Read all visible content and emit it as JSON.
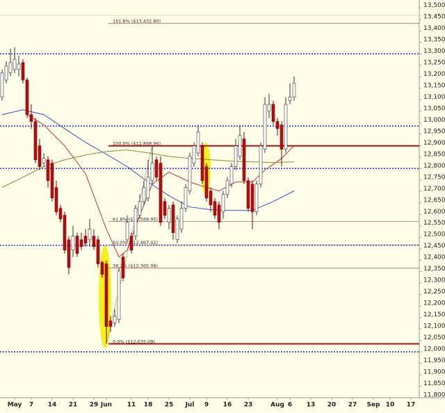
{
  "chart_data": {
    "type": "candlestick",
    "up_color": "#ffffff",
    "down_color": "#b01010",
    "xlim": [
      -0.5,
      100
    ],
    "xticks": [
      {
        "value": 3,
        "label": "May"
      },
      {
        "value": 7,
        "label": "7"
      },
      {
        "value": 12,
        "label": "14"
      },
      {
        "value": 17,
        "label": "21"
      },
      {
        "value": 22,
        "label": "29"
      },
      {
        "value": 25,
        "label": "Jun"
      },
      {
        "value": 31,
        "label": "11"
      },
      {
        "value": 35,
        "label": "18"
      },
      {
        "value": 40,
        "label": "25"
      },
      {
        "value": 45,
        "label": "Jul"
      },
      {
        "value": 49,
        "label": "9"
      },
      {
        "value": 54,
        "label": "16"
      },
      {
        "value": 59,
        "label": "23"
      },
      {
        "value": 66,
        "label": "Aug"
      },
      {
        "value": 69,
        "label": "6"
      },
      {
        "value": 74,
        "label": "13"
      },
      {
        "value": 79,
        "label": "20"
      },
      {
        "value": 84,
        "label": "27"
      },
      {
        "value": 89,
        "label": "Sep"
      },
      {
        "value": 93,
        "label": "10"
      },
      {
        "value": 98,
        "label": "17"
      }
    ],
    "ylim": [
      11800,
      13535
    ],
    "yticks": [
      {
        "value": 11800,
        "label": "11,800"
      },
      {
        "value": 11850,
        "label": "11,850"
      },
      {
        "value": 11900,
        "label": "11,900"
      },
      {
        "value": 11950,
        "label": "11,950"
      },
      {
        "value": 12000,
        "label": "12,000"
      },
      {
        "value": 12050,
        "label": "12,050"
      },
      {
        "value": 12100,
        "label": "12,100"
      },
      {
        "value": 12150,
        "label": "12,150"
      },
      {
        "value": 12200,
        "label": "12,200"
      },
      {
        "value": 12250,
        "label": "12,250"
      },
      {
        "value": 12300,
        "label": "12,300"
      },
      {
        "value": 12350,
        "label": "12,350"
      },
      {
        "value": 12400,
        "label": "12,400"
      },
      {
        "value": 12450,
        "label": "12,450"
      },
      {
        "value": 12500,
        "label": "12,500"
      },
      {
        "value": 12550,
        "label": "12,550"
      },
      {
        "value": 12600,
        "label": "12,600"
      },
      {
        "value": 12650,
        "label": "12,650"
      },
      {
        "value": 12700,
        "label": "12,700"
      },
      {
        "value": 12750,
        "label": "12,750"
      },
      {
        "value": 12800,
        "label": "12,800"
      },
      {
        "value": 12850,
        "label": "12,850"
      },
      {
        "value": 12900,
        "label": "12,900"
      },
      {
        "value": 12950,
        "label": "12,950"
      },
      {
        "value": 13000,
        "label": "13,000"
      },
      {
        "value": 13050,
        "label": "13,050"
      },
      {
        "value": 13100,
        "label": "13,100"
      },
      {
        "value": 13150,
        "label": "13,150"
      },
      {
        "value": 13200,
        "label": "13,200"
      },
      {
        "value": 13250,
        "label": "13,250"
      },
      {
        "value": 13300,
        "label": "13,300"
      },
      {
        "value": 13350,
        "label": "13,350"
      },
      {
        "value": 13400,
        "label": "13,400"
      },
      {
        "value": 13450,
        "label": "13,450"
      },
      {
        "value": 13500,
        "label": "13,500"
      }
    ],
    "open": [
      13111,
      13186,
      13217,
      13232,
      13232,
      13262,
      13186,
      13035,
      13005,
      12899,
      12823,
      12838,
      12823,
      12717,
      12626,
      12596,
      12489,
      12444,
      12505,
      12489,
      12505,
      12489,
      12505,
      12489,
      12390,
      12384,
      12135,
      12126,
      12141,
      12414,
      12489,
      12505,
      12505,
      12596,
      12656,
      12671,
      12747,
      12838,
      12823,
      12656,
      12565,
      12641,
      12490,
      12535,
      12626,
      12702,
      12823,
      12868,
      12899,
      12808,
      12702,
      12656,
      12641,
      12611,
      12687,
      12732,
      12808,
      12853,
      12929,
      12747,
      12732,
      12611,
      12732,
      12884,
      13050,
      13080,
      13005,
      12990,
      12884,
      13096,
      13111
    ],
    "high": [
      13232,
      13268,
      13323,
      13329,
      13293,
      13277,
      13196,
      13080,
      13020,
      12929,
      12868,
      12853,
      12838,
      12747,
      12641,
      12611,
      12505,
      12550,
      12520,
      12520,
      12535,
      12580,
      12535,
      12505,
      12398,
      12398,
      12156,
      12186,
      12368,
      12429,
      12596,
      12520,
      12641,
      12687,
      12747,
      12838,
      12899,
      12853,
      12853,
      12671,
      12641,
      12656,
      12596,
      12656,
      12732,
      12868,
      12914,
      12990,
      12914,
      12823,
      12717,
      12671,
      12656,
      12702,
      12762,
      12823,
      12929,
      12990,
      12959,
      12762,
      12747,
      12747,
      12914,
      13111,
      13126,
      13096,
      13020,
      13005,
      13111,
      13171,
      13202
    ],
    "low": [
      13096,
      13171,
      13202,
      13217,
      13202,
      13171,
      13020,
      12974,
      12823,
      12793,
      12808,
      12717,
      12656,
      12596,
      12565,
      12429,
      12338,
      12414,
      12414,
      12444,
      12459,
      12459,
      12444,
      12368,
      12323,
      12035,
      12087,
      12111,
      12126,
      12308,
      12474,
      12429,
      12489,
      12580,
      12641,
      12656,
      12732,
      12747,
      12550,
      12580,
      12535,
      12490,
      12474,
      12520,
      12611,
      12687,
      12808,
      12853,
      12732,
      12656,
      12611,
      12580,
      12535,
      12580,
      12671,
      12717,
      12793,
      12838,
      12732,
      12611,
      12535,
      12596,
      12717,
      12868,
      13020,
      12990,
      12944,
      12808,
      12868,
      13080,
      13096
    ],
    "close": [
      13217,
      13247,
      13262,
      13277,
      13256,
      13186,
      13035,
      13005,
      12838,
      12808,
      12844,
      12747,
      12671,
      12611,
      12580,
      12444,
      12368,
      12505,
      12429,
      12459,
      12474,
      12535,
      12459,
      12384,
      12338,
      12111,
      12111,
      12156,
      12353,
      12323,
      12565,
      12444,
      12626,
      12656,
      12717,
      12762,
      12823,
      12762,
      12565,
      12596,
      12626,
      12520,
      12580,
      12626,
      12717,
      12853,
      12899,
      12959,
      12747,
      12671,
      12641,
      12596,
      12565,
      12687,
      12747,
      12808,
      12899,
      12944,
      12747,
      12626,
      12611,
      12732,
      12899,
      13080,
      13080,
      13005,
      12974,
      12884,
      13080,
      13111,
      13171
    ],
    "moving_averages": [
      {
        "color": "#c83232",
        "x": [
          6,
          10,
          15,
          20,
          25,
          28,
          30,
          33,
          36,
          40,
          45,
          48,
          52,
          56,
          60,
          63,
          67,
          70
        ],
        "values": [
          13035,
          12990,
          12899,
          12778,
          12535,
          12414,
          12444,
          12596,
          12732,
          12784,
          12741,
          12723,
          12702,
          12741,
          12741,
          12793,
          12844,
          12899
        ]
      },
      {
        "color": "#3050c8",
        "x": [
          0,
          5,
          10,
          15,
          20,
          25,
          30,
          35,
          40,
          45,
          50,
          55,
          60,
          65,
          70
        ],
        "values": [
          13035,
          13056,
          13035,
          12974,
          12914,
          12862,
          12808,
          12741,
          12681,
          12632,
          12620,
          12617,
          12617,
          12656,
          12702
        ]
      },
      {
        "color": "#8a8a30",
        "x": [
          0,
          5,
          10,
          15,
          20,
          25,
          30,
          35,
          40,
          45,
          50,
          55,
          60,
          65,
          70
        ],
        "values": [
          12717,
          12762,
          12808,
          12838,
          12859,
          12874,
          12881,
          12868,
          12853,
          12844,
          12838,
          12832,
          12829,
          12826,
          12829
        ]
      }
    ],
    "trendline": {
      "x": [
        25,
        36
      ],
      "values": [
        12035,
        12899
      ]
    },
    "fib_levels": {
      "values": [
        13432.8,
        12898.96,
        12568.95,
        12467.02,
        12365.08,
        12035.09
      ],
      "value_labels": [
        "161.8%  ($13,432.80)",
        "100.0%  ($12,898.96)",
        "61.8%  ($12,568.95)",
        "50.0%  ($12,467.02)",
        "38.2%  ($12,365.08)",
        "0.0%  ($12,035.09)"
      ],
      "color": "#a07060"
    },
    "support_lines": {
      "values": [
        12898.96,
        12035.09
      ],
      "color": "#b01010"
    },
    "reference_lines": {
      "values": [
        13300,
        12985,
        12800,
        12465,
        12000
      ],
      "color": "#2233dd"
    }
  }
}
